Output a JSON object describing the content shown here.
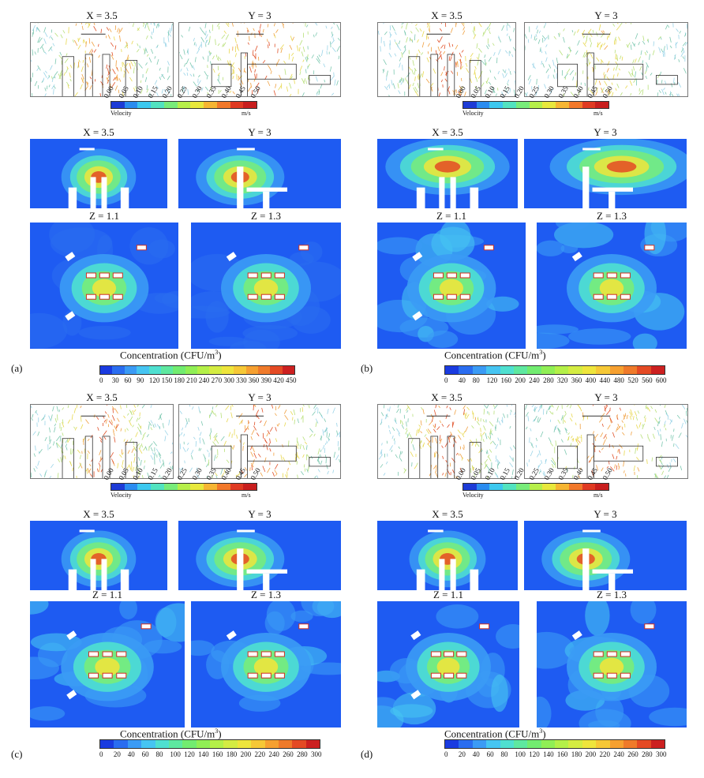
{
  "panels": [
    {
      "label": "(a)",
      "vector_titles": [
        "X = 3.5",
        "Y = 3"
      ],
      "contour_titles": [
        "X = 3.5",
        "Y = 3"
      ],
      "plan_titles": [
        "Z = 1.1",
        "Z = 1.3"
      ],
      "velocity": {
        "ticks": [
          "0.00",
          "0.05",
          "0.10",
          "0.15",
          "0.20",
          "0.25",
          "0.30",
          "0.35",
          "0.40",
          "0.45",
          "0.50"
        ],
        "label": "Velocity",
        "unit": "m/s"
      },
      "concentration": {
        "title": "Concentration (CFU/m",
        "sup": "3",
        "close": ")",
        "ticks": [
          "0",
          "30",
          "60",
          "90",
          "120",
          "150",
          "180",
          "210",
          "240",
          "270",
          "300",
          "330",
          "360",
          "390",
          "420",
          "450"
        ]
      }
    },
    {
      "label": "(b)",
      "vector_titles": [
        "X = 3.5",
        "Y = 3"
      ],
      "contour_titles": [
        "X = 3.5",
        "Y = 3"
      ],
      "plan_titles": [
        "Z = 1.1",
        "Z = 1.3"
      ],
      "velocity": {
        "ticks": [
          "0.00",
          "0.05",
          "0.10",
          "0.15",
          "0.20",
          "0.25",
          "0.30",
          "0.35",
          "0.40",
          "0.45",
          "0.50"
        ],
        "label": "Velocity",
        "unit": "m/s"
      },
      "concentration": {
        "title": "Concentration (CFU/m",
        "sup": "3",
        "close": ")",
        "ticks": [
          "0",
          "40",
          "80",
          "120",
          "160",
          "200",
          "240",
          "280",
          "320",
          "360",
          "400",
          "440",
          "480",
          "520",
          "560",
          "600"
        ]
      }
    },
    {
      "label": "(c)",
      "vector_titles": [
        "X = 3.5",
        "Y = 3"
      ],
      "contour_titles": [
        "X = 3.5",
        "Y = 3"
      ],
      "plan_titles": [
        "Z = 1.1",
        "Z = 1.3"
      ],
      "velocity": {
        "ticks": [
          "0.00",
          "0.05",
          "0.10",
          "0.15",
          "0.20",
          "0.25",
          "0.30",
          "0.35",
          "0.40",
          "0.45",
          "0.50"
        ],
        "label": "Velocity",
        "unit": "m/s"
      },
      "concentration": {
        "title": "Concentration (CFU/m",
        "sup": "3",
        "close": ")",
        "ticks": [
          "0",
          "20",
          "40",
          "60",
          "80",
          "100",
          "120",
          "140",
          "160",
          "180",
          "200",
          "220",
          "240",
          "260",
          "280",
          "300"
        ]
      }
    },
    {
      "label": "(d)",
      "vector_titles": [
        "X = 3.5",
        "Y = 3"
      ],
      "contour_titles": [
        "X = 3.5",
        "Y = 3"
      ],
      "plan_titles": [
        "Z = 1.1",
        "Z = 1.3"
      ],
      "velocity": {
        "ticks": [
          "0.00",
          "0.05",
          "0.10",
          "0.15",
          "0.20",
          "0.25",
          "0.30",
          "0.35",
          "0.40",
          "0.45",
          "0.50"
        ],
        "label": "Velocity",
        "unit": "m/s"
      },
      "concentration": {
        "title": "Concentration (CFU/m",
        "sup": "3",
        "close": ")",
        "ticks": [
          "0",
          "20",
          "40",
          "60",
          "80",
          "100",
          "120",
          "140",
          "160",
          "180",
          "200",
          "220",
          "240",
          "260",
          "280",
          "300"
        ]
      }
    }
  ],
  "colors": {
    "velocity_ramp": [
      "#1d3bd6",
      "#2a8cf0",
      "#3cc8ef",
      "#52e3c0",
      "#78ec7a",
      "#b6ef4a",
      "#e8e83c",
      "#f6b532",
      "#f2782a",
      "#e03a22",
      "#c81e1e"
    ],
    "conc_ramp": [
      "#1a3be0",
      "#2a6df0",
      "#3b9bf5",
      "#46c5f2",
      "#4fe0d0",
      "#5ee8a0",
      "#72ec70",
      "#90ef55",
      "#b4f048",
      "#d4ec42",
      "#eee53c",
      "#f6c836",
      "#f6a030",
      "#ef7a2a",
      "#e44a24",
      "#cc2020"
    ]
  }
}
